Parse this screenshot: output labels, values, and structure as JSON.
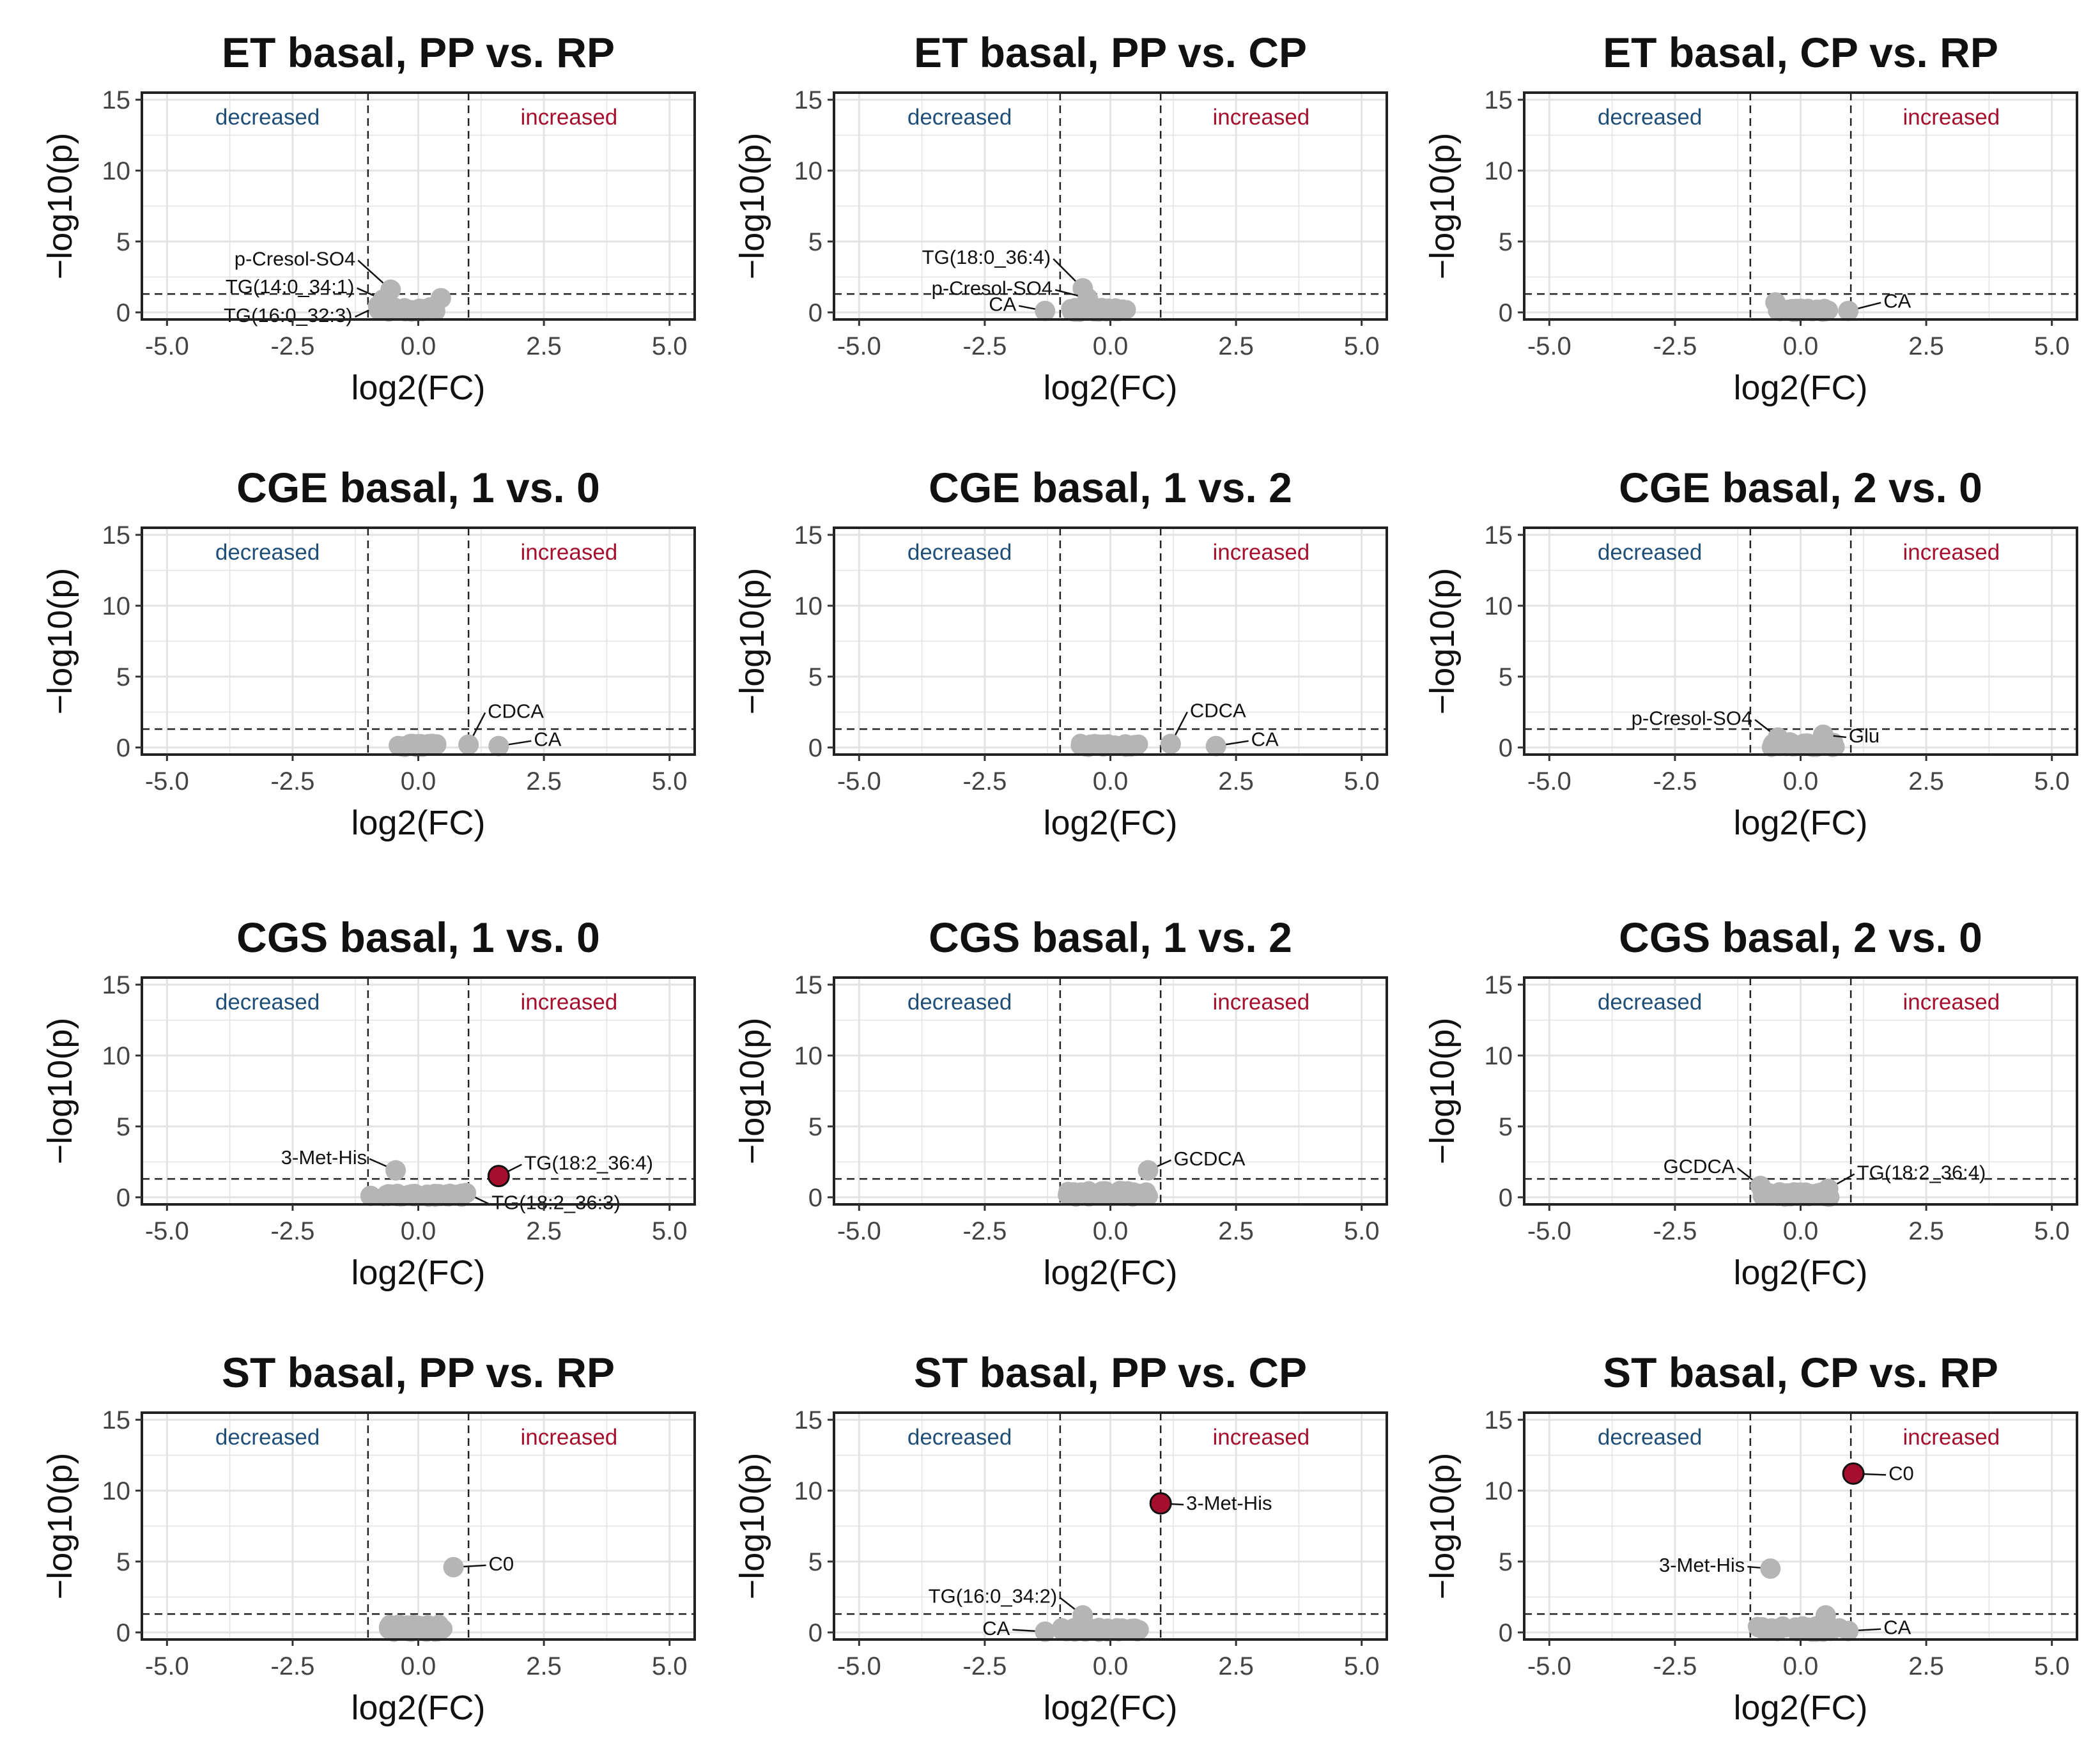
{
  "colors": {
    "decreased": "#1f4e79",
    "increased": "#a50f2d",
    "significant_point": "#a50f2d",
    "nonsignificant_point": "#b5b5b5",
    "panel_border": "#222222",
    "gridline": "#e3e3e3"
  },
  "chart_data": [
    {
      "type": "scatter",
      "title": "ET basal, PP vs. RP",
      "xlabel": "log2(FC)",
      "ylabel": "−log10(p)",
      "xlim": [
        -5.5,
        5.5
      ],
      "ylim": [
        -0.5,
        15.5
      ],
      "xticks": [
        "-5.0",
        "-2.5",
        "0.0",
        "2.5",
        "5.0"
      ],
      "yticks": [
        "0",
        "5",
        "10",
        "15"
      ],
      "thresholds": {
        "fc": [
          -1,
          1
        ],
        "p": 1.3
      },
      "region_labels": {
        "decreased": "decreased",
        "increased": "increased"
      },
      "cluster": {
        "x": [
          -0.8,
          0.4
        ],
        "y": [
          0.0,
          0.4
        ]
      },
      "points": [
        {
          "x": -0.55,
          "y": 1.6,
          "label": "p-Cresol-SO4",
          "significant": false
        },
        {
          "x": -0.7,
          "y": 0.9,
          "label": "TG(14:0_34:1)",
          "significant": false
        },
        {
          "x": -0.8,
          "y": 0.45,
          "label": "TG(16:0_32:3)",
          "significant": false
        },
        {
          "x": 0.45,
          "y": 1.0,
          "label": "",
          "significant": false
        }
      ]
    },
    {
      "type": "scatter",
      "title": "ET basal, PP vs. CP",
      "xlabel": "log2(FC)",
      "ylabel": "−log10(p)",
      "xlim": [
        -5.5,
        5.5
      ],
      "ylim": [
        -0.5,
        15.5
      ],
      "xticks": [
        "-5.0",
        "-2.5",
        "0.0",
        "2.5",
        "5.0"
      ],
      "yticks": [
        "0",
        "5",
        "10",
        "15"
      ],
      "thresholds": {
        "fc": [
          -1,
          1
        ],
        "p": 1.3
      },
      "region_labels": {
        "decreased": "decreased",
        "increased": "increased"
      },
      "cluster": {
        "x": [
          -0.8,
          0.35
        ],
        "y": [
          0.0,
          0.35
        ]
      },
      "points": [
        {
          "x": -0.55,
          "y": 1.7,
          "label": "TG(18:0_36:4)",
          "significant": false
        },
        {
          "x": -0.45,
          "y": 1.0,
          "label": "p-Cresol-SO4",
          "significant": false
        },
        {
          "x": -1.3,
          "y": 0.1,
          "label": "CA",
          "significant": false
        }
      ]
    },
    {
      "type": "scatter",
      "title": "ET basal, CP vs. RP",
      "xlabel": "log2(FC)",
      "ylabel": "−log10(p)",
      "xlim": [
        -5.5,
        5.5
      ],
      "ylim": [
        -0.5,
        15.5
      ],
      "xticks": [
        "-5.0",
        "-2.5",
        "0.0",
        "2.5",
        "5.0"
      ],
      "yticks": [
        "0",
        "5",
        "10",
        "15"
      ],
      "thresholds": {
        "fc": [
          -1,
          1
        ],
        "p": 1.3
      },
      "region_labels": {
        "decreased": "decreased",
        "increased": "increased"
      },
      "cluster": {
        "x": [
          -0.5,
          0.6
        ],
        "y": [
          0.0,
          0.3
        ]
      },
      "points": [
        {
          "x": -0.5,
          "y": 0.7,
          "label": "",
          "significant": false
        },
        {
          "x": 0.95,
          "y": 0.1,
          "label": "CA",
          "significant": false
        }
      ]
    },
    {
      "type": "scatter",
      "title": "CGE basal, 1 vs. 0",
      "xlabel": "log2(FC)",
      "ylabel": "−log10(p)",
      "xlim": [
        -5.5,
        5.5
      ],
      "ylim": [
        -0.5,
        15.5
      ],
      "xticks": [
        "-5.0",
        "-2.5",
        "0.0",
        "2.5",
        "5.0"
      ],
      "yticks": [
        "0",
        "5",
        "10",
        "15"
      ],
      "thresholds": {
        "fc": [
          -1,
          1
        ],
        "p": 1.3
      },
      "region_labels": {
        "decreased": "decreased",
        "increased": "increased"
      },
      "cluster": {
        "x": [
          -0.4,
          0.4
        ],
        "y": [
          0.0,
          0.3
        ]
      },
      "points": [
        {
          "x": 1.0,
          "y": 0.2,
          "label": "CDCA",
          "significant": false
        },
        {
          "x": 1.6,
          "y": 0.1,
          "label": "CA",
          "significant": false
        }
      ]
    },
    {
      "type": "scatter",
      "title": "CGE basal, 1 vs. 2",
      "xlabel": "log2(FC)",
      "ylabel": "−log10(p)",
      "xlim": [
        -5.5,
        5.5
      ],
      "ylim": [
        -0.5,
        15.5
      ],
      "xticks": [
        "-5.0",
        "-2.5",
        "0.0",
        "2.5",
        "5.0"
      ],
      "yticks": [
        "0",
        "5",
        "10",
        "15"
      ],
      "thresholds": {
        "fc": [
          -1,
          1
        ],
        "p": 1.3
      },
      "region_labels": {
        "decreased": "decreased",
        "increased": "increased"
      },
      "cluster": {
        "x": [
          -0.6,
          0.6
        ],
        "y": [
          0.0,
          0.3
        ]
      },
      "points": [
        {
          "x": 1.2,
          "y": 0.25,
          "label": "CDCA",
          "significant": false
        },
        {
          "x": 2.1,
          "y": 0.1,
          "label": "CA",
          "significant": false
        }
      ]
    },
    {
      "type": "scatter",
      "title": "CGE basal, 2 vs. 0",
      "xlabel": "log2(FC)",
      "ylabel": "−log10(p)",
      "xlim": [
        -5.5,
        5.5
      ],
      "ylim": [
        -0.5,
        15.5
      ],
      "xticks": [
        "-5.0",
        "-2.5",
        "0.0",
        "2.5",
        "5.0"
      ],
      "yticks": [
        "0",
        "5",
        "10",
        "15"
      ],
      "thresholds": {
        "fc": [
          -1,
          1
        ],
        "p": 1.3
      },
      "region_labels": {
        "decreased": "decreased",
        "increased": "increased"
      },
      "cluster": {
        "x": [
          -0.6,
          0.7
        ],
        "y": [
          0.0,
          0.4
        ]
      },
      "points": [
        {
          "x": -0.45,
          "y": 0.7,
          "label": "p-Cresol-SO4",
          "significant": false
        },
        {
          "x": 0.45,
          "y": 0.9,
          "label": "Glu",
          "significant": false
        }
      ]
    },
    {
      "type": "scatter",
      "title": "CGS basal, 1 vs. 0",
      "xlabel": "log2(FC)",
      "ylabel": "−log10(p)",
      "xlim": [
        -5.5,
        5.5
      ],
      "ylim": [
        -0.5,
        15.5
      ],
      "xticks": [
        "-5.0",
        "-2.5",
        "0.0",
        "2.5",
        "5.0"
      ],
      "yticks": [
        "0",
        "5",
        "10",
        "15"
      ],
      "thresholds": {
        "fc": [
          -1,
          1
        ],
        "p": 1.3
      },
      "region_labels": {
        "decreased": "decreased",
        "increased": "increased"
      },
      "cluster": {
        "x": [
          -0.8,
          0.9
        ],
        "y": [
          0.0,
          0.3
        ]
      },
      "points": [
        {
          "x": -0.45,
          "y": 1.9,
          "label": "3-Met-His",
          "significant": false
        },
        {
          "x": -0.95,
          "y": 0.1,
          "label": "",
          "significant": false
        },
        {
          "x": 1.6,
          "y": 1.5,
          "label": "TG(18:2_36:4)",
          "significant": true
        },
        {
          "x": 0.95,
          "y": 0.3,
          "label": "TG(18:2_36:3)",
          "significant": false
        }
      ]
    },
    {
      "type": "scatter",
      "title": "CGS basal, 1 vs. 2",
      "xlabel": "log2(FC)",
      "ylabel": "−log10(p)",
      "xlim": [
        -5.5,
        5.5
      ],
      "ylim": [
        -0.5,
        15.5
      ],
      "xticks": [
        "-5.0",
        "-2.5",
        "0.0",
        "2.5",
        "5.0"
      ],
      "yticks": [
        "0",
        "5",
        "10",
        "15"
      ],
      "thresholds": {
        "fc": [
          -1,
          1
        ],
        "p": 1.3
      },
      "region_labels": {
        "decreased": "decreased",
        "increased": "increased"
      },
      "cluster": {
        "x": [
          -0.9,
          0.8
        ],
        "y": [
          0.0,
          0.5
        ]
      },
      "points": [
        {
          "x": 0.75,
          "y": 1.9,
          "label": "GCDCA",
          "significant": false
        }
      ]
    },
    {
      "type": "scatter",
      "title": "CGS basal, 2 vs. 0",
      "xlabel": "log2(FC)",
      "ylabel": "−log10(p)",
      "xlim": [
        -5.5,
        5.5
      ],
      "ylim": [
        -0.5,
        15.5
      ],
      "xticks": [
        "-5.0",
        "-2.5",
        "0.0",
        "2.5",
        "5.0"
      ],
      "yticks": [
        "0",
        "5",
        "10",
        "15"
      ],
      "thresholds": {
        "fc": [
          -1,
          1
        ],
        "p": 1.3
      },
      "region_labels": {
        "decreased": "decreased",
        "increased": "increased"
      },
      "cluster": {
        "x": [
          -0.8,
          0.6
        ],
        "y": [
          0.0,
          0.4
        ]
      },
      "points": [
        {
          "x": -0.8,
          "y": 0.8,
          "label": "GCDCA",
          "significant": false
        },
        {
          "x": 0.55,
          "y": 0.6,
          "label": "TG(18:2_36:4)",
          "significant": false
        }
      ]
    },
    {
      "type": "scatter",
      "title": "ST basal, PP vs. RP",
      "xlabel": "log2(FC)",
      "ylabel": "−log10(p)",
      "xlim": [
        -5.5,
        5.5
      ],
      "ylim": [
        -0.5,
        15.5
      ],
      "xticks": [
        "-5.0",
        "-2.5",
        "0.0",
        "2.5",
        "5.0"
      ],
      "yticks": [
        "0",
        "5",
        "10",
        "15"
      ],
      "thresholds": {
        "fc": [
          -1,
          1
        ],
        "p": 1.3
      },
      "region_labels": {
        "decreased": "decreased",
        "increased": "increased"
      },
      "cluster": {
        "x": [
          -0.6,
          0.5
        ],
        "y": [
          0.0,
          0.6
        ]
      },
      "points": [
        {
          "x": 0.7,
          "y": 4.6,
          "label": "C0",
          "significant": false
        }
      ]
    },
    {
      "type": "scatter",
      "title": "ST basal, PP vs. CP",
      "xlabel": "log2(FC)",
      "ylabel": "−log10(p)",
      "xlim": [
        -5.5,
        5.5
      ],
      "ylim": [
        -0.5,
        15.5
      ],
      "xticks": [
        "-5.0",
        "-2.5",
        "0.0",
        "2.5",
        "5.0"
      ],
      "yticks": [
        "0",
        "5",
        "10",
        "15"
      ],
      "thresholds": {
        "fc": [
          -1,
          1
        ],
        "p": 1.3
      },
      "region_labels": {
        "decreased": "decreased",
        "increased": "increased"
      },
      "cluster": {
        "x": [
          -1.0,
          0.6
        ],
        "y": [
          0.0,
          0.4
        ]
      },
      "points": [
        {
          "x": 1.0,
          "y": 9.1,
          "label": "3-Met-His",
          "significant": true
        },
        {
          "x": -0.55,
          "y": 1.2,
          "label": "TG(16:0_34:2)",
          "significant": false
        },
        {
          "x": -1.3,
          "y": 0.05,
          "label": "CA",
          "significant": false
        }
      ]
    },
    {
      "type": "scatter",
      "title": "ST basal, CP vs. RP",
      "xlabel": "log2(FC)",
      "ylabel": "−log10(p)",
      "xlim": [
        -5.5,
        5.5
      ],
      "ylim": [
        -0.5,
        15.5
      ],
      "xticks": [
        "-5.0",
        "-2.5",
        "0.0",
        "2.5",
        "5.0"
      ],
      "yticks": [
        "0",
        "5",
        "10",
        "15"
      ],
      "thresholds": {
        "fc": [
          -1,
          1
        ],
        "p": 1.3
      },
      "region_labels": {
        "decreased": "decreased",
        "increased": "increased"
      },
      "cluster": {
        "x": [
          -0.9,
          0.8
        ],
        "y": [
          0.0,
          0.5
        ]
      },
      "points": [
        {
          "x": 1.05,
          "y": 11.2,
          "label": "C0",
          "significant": true
        },
        {
          "x": -0.6,
          "y": 4.5,
          "label": "3-Met-His",
          "significant": false
        },
        {
          "x": 0.5,
          "y": 1.2,
          "label": "",
          "significant": false
        },
        {
          "x": 0.95,
          "y": 0.1,
          "label": "CA",
          "significant": false
        }
      ]
    }
  ]
}
